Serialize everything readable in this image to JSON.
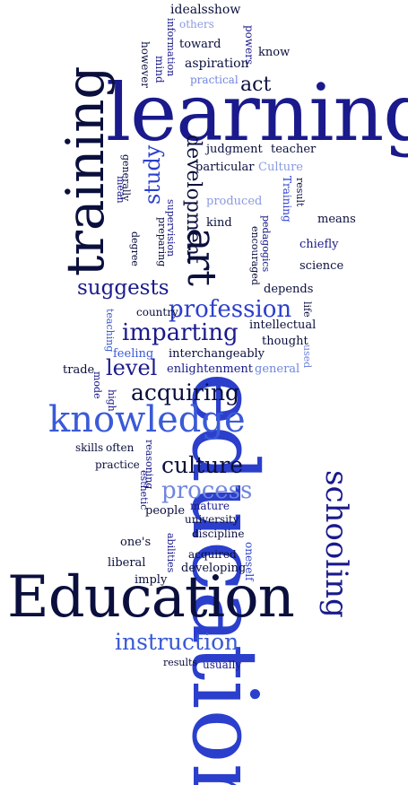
{
  "cloud": {
    "colors": [
      "#0a0f3d",
      "#1a1a8c",
      "#2b3fcc",
      "#3a5ad6",
      "#6f86dd",
      "#8a9ae0"
    ],
    "words": [
      {
        "text": "education",
        "color": "#2b3fcc"
      },
      {
        "text": "learning",
        "color": "#1a1a8c"
      },
      {
        "text": "Education",
        "color": "#0a0f3d"
      },
      {
        "text": "training",
        "color": "#0a0f3d"
      },
      {
        "text": "knowledge",
        "color": "#3a5ad6"
      },
      {
        "text": "schooling",
        "color": "#1a1a8c"
      },
      {
        "text": "art",
        "color": "#0a0f3d"
      },
      {
        "text": "profession",
        "color": "#2b3fcc"
      },
      {
        "text": "instruction",
        "color": "#3a5ad6"
      },
      {
        "text": "process",
        "color": "#6f86dd"
      },
      {
        "text": "development",
        "color": "#0a0f3d"
      },
      {
        "text": "imparting",
        "color": "#1a1a8c"
      },
      {
        "text": "acquiring",
        "color": "#0a0f3d"
      },
      {
        "text": "culture",
        "color": "#0a0f3d"
      },
      {
        "text": "suggests",
        "color": "#1a1a8c"
      },
      {
        "text": "study",
        "color": "#2b3fcc"
      },
      {
        "text": "level",
        "color": "#1a1a8c"
      },
      {
        "text": "act",
        "color": "#0a0f3d"
      },
      {
        "text": "idealsshow",
        "color": "#0a0f3d"
      },
      {
        "text": "others",
        "color": "#8a9ae0"
      },
      {
        "text": "information",
        "color": "#1a1a8c"
      },
      {
        "text": "toward",
        "color": "#0a0f3d"
      },
      {
        "text": "powers",
        "color": "#1a1a8c"
      },
      {
        "text": "know",
        "color": "#0a0f3d"
      },
      {
        "text": "however",
        "color": "#0a0f3d"
      },
      {
        "text": "mind",
        "color": "#1a1a8c"
      },
      {
        "text": "aspiration",
        "color": "#0a0f3d"
      },
      {
        "text": "practical",
        "color": "#6f86dd"
      },
      {
        "text": "judgment",
        "color": "#0a0f3d"
      },
      {
        "text": "teacher",
        "color": "#0a0f3d"
      },
      {
        "text": "generally",
        "color": "#0a0f3d"
      },
      {
        "text": "particular",
        "color": "#0a0f3d"
      },
      {
        "text": "Culture",
        "color": "#8a9ae0"
      },
      {
        "text": "mean",
        "color": "#1a1a8c"
      },
      {
        "text": "produced",
        "color": "#8a9ae0"
      },
      {
        "text": "result",
        "color": "#0a0f3d"
      },
      {
        "text": "Training",
        "color": "#2b3fcc"
      },
      {
        "text": "supervision",
        "color": "#1a1a8c"
      },
      {
        "text": "preparing",
        "color": "#0a0f3d"
      },
      {
        "text": "kind",
        "color": "#0a0f3d"
      },
      {
        "text": "degree",
        "color": "#0a0f3d"
      },
      {
        "text": "pedagogics",
        "color": "#1a1a8c"
      },
      {
        "text": "means",
        "color": "#0a0f3d"
      },
      {
        "text": "encouraged",
        "color": "#0a0f3d"
      },
      {
        "text": "chiefly",
        "color": "#1a1a8c"
      },
      {
        "text": "science",
        "color": "#0a0f3d"
      },
      {
        "text": "depends",
        "color": "#0a0f3d"
      },
      {
        "text": "life",
        "color": "#0a0f3d"
      },
      {
        "text": "country",
        "color": "#0a0f3d"
      },
      {
        "text": "teaching",
        "color": "#3a5ad6"
      },
      {
        "text": "intellectual",
        "color": "#0a0f3d"
      },
      {
        "text": "thought",
        "color": "#0a0f3d"
      },
      {
        "text": "feeling",
        "color": "#3a5ad6"
      },
      {
        "text": "interchangeably",
        "color": "#0a0f3d"
      },
      {
        "text": "used",
        "color": "#6f86dd"
      },
      {
        "text": "trade",
        "color": "#0a0f3d"
      },
      {
        "text": "enlightenment",
        "color": "#1a1a8c"
      },
      {
        "text": "general",
        "color": "#6f86dd"
      },
      {
        "text": "mode",
        "color": "#1a1a8c"
      },
      {
        "text": "high",
        "color": "#1a1a8c"
      },
      {
        "text": "skills",
        "color": "#0a0f3d"
      },
      {
        "text": "often",
        "color": "#0a0f3d"
      },
      {
        "text": "reasoning",
        "color": "#1a1a8c"
      },
      {
        "text": "practice",
        "color": "#0a0f3d"
      },
      {
        "text": "esthetic",
        "color": "#1a1a8c"
      },
      {
        "text": "people",
        "color": "#0a0f3d"
      },
      {
        "text": "mature",
        "color": "#1a1a8c"
      },
      {
        "text": "university",
        "color": "#0a0f3d"
      },
      {
        "text": "discipline",
        "color": "#0a0f3d"
      },
      {
        "text": "one's",
        "color": "#0a0f3d"
      },
      {
        "text": "abilities",
        "color": "#1a1a8c"
      },
      {
        "text": "oneself",
        "color": "#2b3fcc"
      },
      {
        "text": "acquired",
        "color": "#0a0f3d"
      },
      {
        "text": "liberal",
        "color": "#0a0f3d"
      },
      {
        "text": "developing",
        "color": "#0a0f3d"
      },
      {
        "text": "imply",
        "color": "#0a0f3d"
      },
      {
        "text": "results",
        "color": "#0a0f3d"
      },
      {
        "text": "usually",
        "color": "#1a1a8c"
      }
    ]
  }
}
